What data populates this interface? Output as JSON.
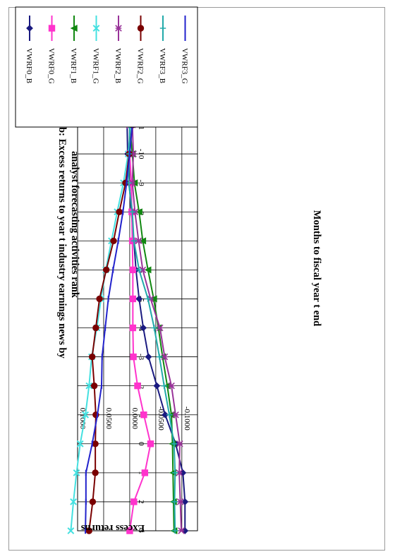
{
  "chart_data": {
    "type": "line",
    "title_line1": "Figure 2b: Excess returns  to year t industry  earnings news by",
    "title_line2": "analyst forecasting activities rank",
    "xlabel": "Months to fiscal year t end",
    "ylabel": "Excess returns",
    "x": [
      -11,
      -10,
      -9,
      -8,
      -7,
      -6,
      -5,
      -4,
      -3,
      -2,
      -1,
      0,
      1,
      2,
      3
    ],
    "y_ticks": [
      "-0.1000",
      "-0.0500",
      "0.0000",
      "0.0500",
      "0.1000"
    ],
    "y_tick_values": [
      -0.1,
      -0.05,
      0,
      0.05,
      0.1
    ],
    "ylim": [
      -0.13,
      0.1
    ],
    "grid": true,
    "legend_position": "top-right",
    "series": [
      {
        "name": "VWRF0_B",
        "color": "#1a1a80",
        "marker": "diamond",
        "values": [
          0.005,
          0.004,
          0.001,
          -0.003,
          -0.008,
          -0.012,
          -0.018,
          -0.026,
          -0.036,
          -0.052,
          -0.068,
          -0.088,
          -0.102,
          -0.106,
          -0.106
        ]
      },
      {
        "name": "VWRF0_G",
        "color": "#ff33cc",
        "marker": "square",
        "values": [
          0.0,
          0.0,
          -0.003,
          -0.004,
          -0.005,
          -0.006,
          -0.006,
          -0.006,
          -0.007,
          -0.015,
          -0.027,
          -0.04,
          -0.029,
          -0.008,
          0.0
        ]
      },
      {
        "name": "VWRF1_B",
        "color": "#118811",
        "marker": "triangle",
        "values": [
          0.0,
          -0.005,
          -0.009,
          -0.018,
          -0.025,
          -0.035,
          -0.046,
          -0.055,
          -0.063,
          -0.072,
          -0.08,
          -0.082,
          -0.083,
          -0.084,
          -0.085
        ]
      },
      {
        "name": "VWRF1_G",
        "color": "#44e0e0",
        "marker": "x",
        "values": [
          -0.002,
          0.003,
          0.012,
          0.024,
          0.035,
          0.046,
          0.055,
          0.063,
          0.073,
          0.078,
          0.085,
          0.095,
          0.102,
          0.108,
          0.113
        ]
      },
      {
        "name": "VWRF2_B",
        "color": "#993399",
        "marker": "star",
        "values": [
          -0.005,
          -0.007,
          -0.005,
          -0.01,
          -0.017,
          -0.025,
          -0.04,
          -0.058,
          -0.067,
          -0.08,
          -0.088,
          -0.096,
          -0.095,
          -0.097,
          -0.099
        ]
      },
      {
        "name": "VWRF2_G",
        "color": "#7a0000",
        "marker": "circle",
        "values": [
          -0.005,
          0.001,
          0.008,
          0.02,
          0.031,
          0.045,
          0.058,
          0.065,
          0.072,
          0.068,
          0.065,
          0.066,
          0.066,
          0.071,
          0.078
        ]
      },
      {
        "name": "VWRF3_B",
        "color": "#22aaaa",
        "marker": "plus",
        "values": [
          0.0,
          0.001,
          0.002,
          -0.005,
          -0.008,
          -0.018,
          -0.035,
          -0.047,
          -0.057,
          -0.066,
          -0.076,
          -0.085,
          -0.087,
          -0.086,
          -0.087
        ]
      },
      {
        "name": "VWRF3_G",
        "color": "#2222cc",
        "marker": "dash",
        "values": [
          -0.005,
          0.0,
          0.006,
          0.013,
          0.022,
          0.032,
          0.041,
          0.047,
          0.053,
          0.054,
          0.062,
          0.072,
          0.084,
          0.084,
          0.085
        ]
      }
    ]
  }
}
